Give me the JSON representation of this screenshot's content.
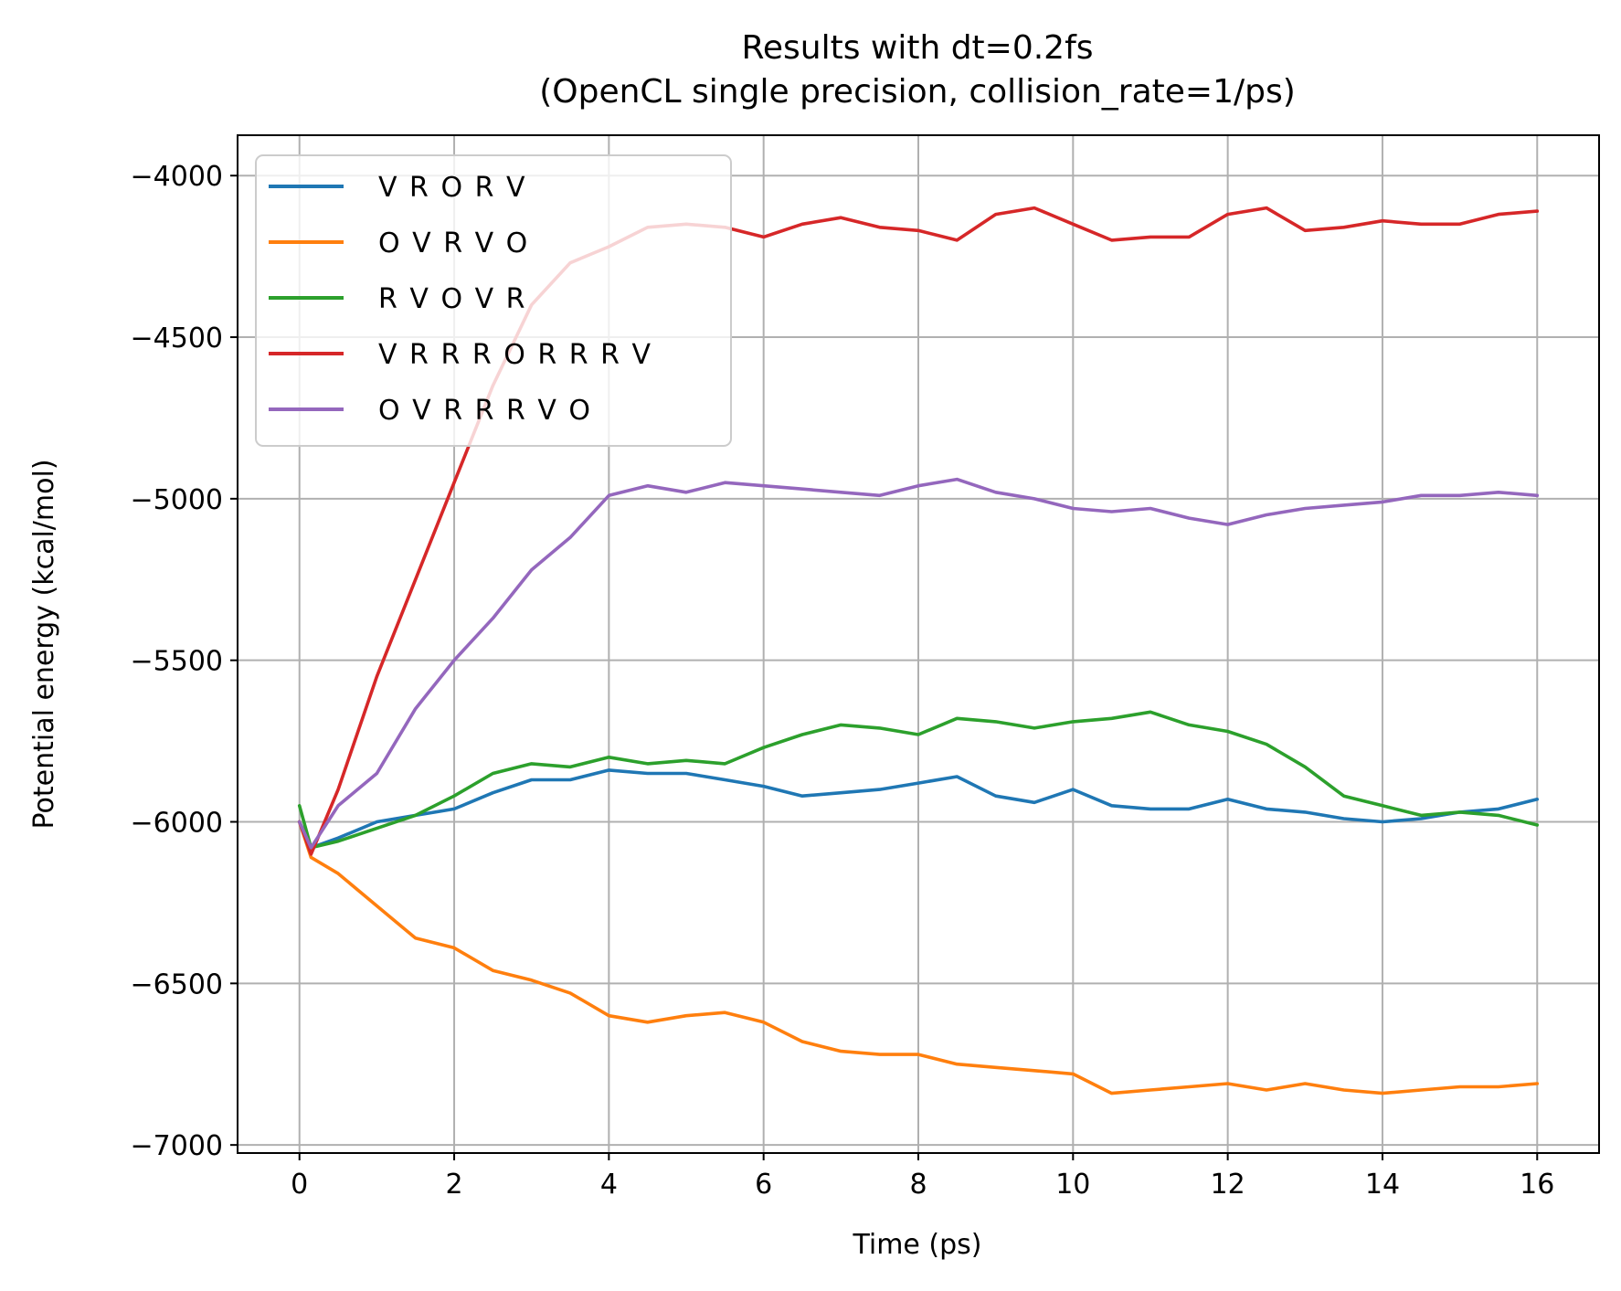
{
  "chart_data": {
    "type": "line",
    "title": "Results with dt=0.2fs",
    "subtitle": "(OpenCL single precision, collision_rate=1/ps)",
    "xlabel": "Time (ps)",
    "ylabel": "Potential energy (kcal/mol)",
    "xlim": [
      -0.8,
      16.8
    ],
    "ylim": [
      -7025,
      -3875
    ],
    "xticks": [
      0,
      2,
      4,
      6,
      8,
      10,
      12,
      14,
      16
    ],
    "yticks": [
      -7000,
      -6500,
      -6000,
      -5500,
      -5000,
      -4500,
      -4000
    ],
    "xtick_labels": [
      "0",
      "2",
      "4",
      "6",
      "8",
      "10",
      "12",
      "14",
      "16"
    ],
    "ytick_labels": [
      "−7000",
      "−6500",
      "−6000",
      "−5500",
      "−5000",
      "−4500",
      "−4000"
    ],
    "grid": true,
    "legend_position": "upper-left",
    "series": [
      {
        "name": "V R O R V",
        "color": "#1f77b4",
        "x": [
          0,
          0.15,
          0.5,
          1,
          1.5,
          2,
          2.5,
          3,
          3.5,
          4,
          4.5,
          5,
          5.5,
          6,
          6.5,
          7,
          7.5,
          8,
          8.5,
          9,
          9.5,
          10,
          10.5,
          11,
          11.5,
          12,
          12.5,
          13,
          13.5,
          14,
          14.5,
          15,
          15.5,
          16
        ],
        "y": [
          -6000,
          -6080,
          -6050,
          -6000,
          -5980,
          -5960,
          -5910,
          -5870,
          -5870,
          -5840,
          -5850,
          -5850,
          -5870,
          -5890,
          -5920,
          -5910,
          -5900,
          -5880,
          -5860,
          -5920,
          -5940,
          -5900,
          -5950,
          -5960,
          -5960,
          -5930,
          -5960,
          -5970,
          -5990,
          -6000,
          -5990,
          -5970,
          -5960,
          -5930
        ]
      },
      {
        "name": "O V R V O",
        "color": "#ff7f0e",
        "x": [
          0,
          0.15,
          0.5,
          1,
          1.5,
          2,
          2.5,
          3,
          3.5,
          4,
          4.5,
          5,
          5.5,
          6,
          6.5,
          7,
          7.5,
          8,
          8.5,
          9,
          9.5,
          10,
          10.5,
          11,
          11.5,
          12,
          12.5,
          13,
          13.5,
          14,
          14.5,
          15,
          15.5,
          16
        ],
        "y": [
          -6000,
          -6110,
          -6160,
          -6260,
          -6360,
          -6390,
          -6460,
          -6490,
          -6530,
          -6600,
          -6620,
          -6600,
          -6590,
          -6620,
          -6680,
          -6710,
          -6720,
          -6720,
          -6750,
          -6760,
          -6770,
          -6780,
          -6840,
          -6830,
          -6820,
          -6810,
          -6830,
          -6810,
          -6830,
          -6840,
          -6830,
          -6820,
          -6820,
          -6810
        ]
      },
      {
        "name": "R V O V R",
        "color": "#2ca02c",
        "x": [
          0,
          0.15,
          0.5,
          1,
          1.5,
          2,
          2.5,
          3,
          3.5,
          4,
          4.5,
          5,
          5.5,
          6,
          6.5,
          7,
          7.5,
          8,
          8.5,
          9,
          9.5,
          10,
          10.5,
          11,
          11.5,
          12,
          12.5,
          13,
          13.5,
          14,
          14.5,
          15,
          15.5,
          16
        ],
        "y": [
          -5950,
          -6080,
          -6060,
          -6020,
          -5980,
          -5920,
          -5850,
          -5820,
          -5830,
          -5800,
          -5820,
          -5810,
          -5820,
          -5770,
          -5730,
          -5700,
          -5710,
          -5730,
          -5680,
          -5690,
          -5710,
          -5690,
          -5680,
          -5660,
          -5700,
          -5720,
          -5760,
          -5830,
          -5920,
          -5950,
          -5980,
          -5970,
          -5980,
          -6010
        ]
      },
      {
        "name": "V R R R O R R R V",
        "color": "#d62728",
        "x": [
          0,
          0.15,
          0.5,
          1,
          1.5,
          2,
          2.5,
          3,
          3.5,
          4,
          4.5,
          5,
          5.5,
          6,
          6.5,
          7,
          7.5,
          8,
          8.5,
          9,
          9.5,
          10,
          10.5,
          11,
          11.5,
          12,
          12.5,
          13,
          13.5,
          14,
          14.5,
          15,
          15.5,
          16
        ],
        "y": [
          -6000,
          -6100,
          -5900,
          -5550,
          -5250,
          -4950,
          -4650,
          -4400,
          -4270,
          -4220,
          -4160,
          -4150,
          -4160,
          -4190,
          -4150,
          -4130,
          -4160,
          -4170,
          -4200,
          -4120,
          -4100,
          -4150,
          -4200,
          -4190,
          -4190,
          -4120,
          -4100,
          -4170,
          -4160,
          -4140,
          -4150,
          -4150,
          -4120,
          -4110
        ]
      },
      {
        "name": "O V R R R V O",
        "color": "#9467bd",
        "x": [
          0,
          0.15,
          0.5,
          1,
          1.5,
          2,
          2.5,
          3,
          3.5,
          4,
          4.5,
          5,
          5.5,
          6,
          6.5,
          7,
          7.5,
          8,
          8.5,
          9,
          9.5,
          10,
          10.5,
          11,
          11.5,
          12,
          12.5,
          13,
          13.5,
          14,
          14.5,
          15,
          15.5,
          16
        ],
        "y": [
          -6000,
          -6080,
          -5950,
          -5850,
          -5650,
          -5500,
          -5370,
          -5220,
          -5120,
          -4990,
          -4960,
          -4980,
          -4950,
          -4960,
          -4970,
          -4980,
          -4990,
          -4960,
          -4940,
          -4980,
          -5000,
          -5030,
          -5040,
          -5030,
          -5060,
          -5080,
          -5050,
          -5030,
          -5020,
          -5010,
          -4990,
          -4990,
          -4980,
          -4990
        ]
      }
    ]
  }
}
